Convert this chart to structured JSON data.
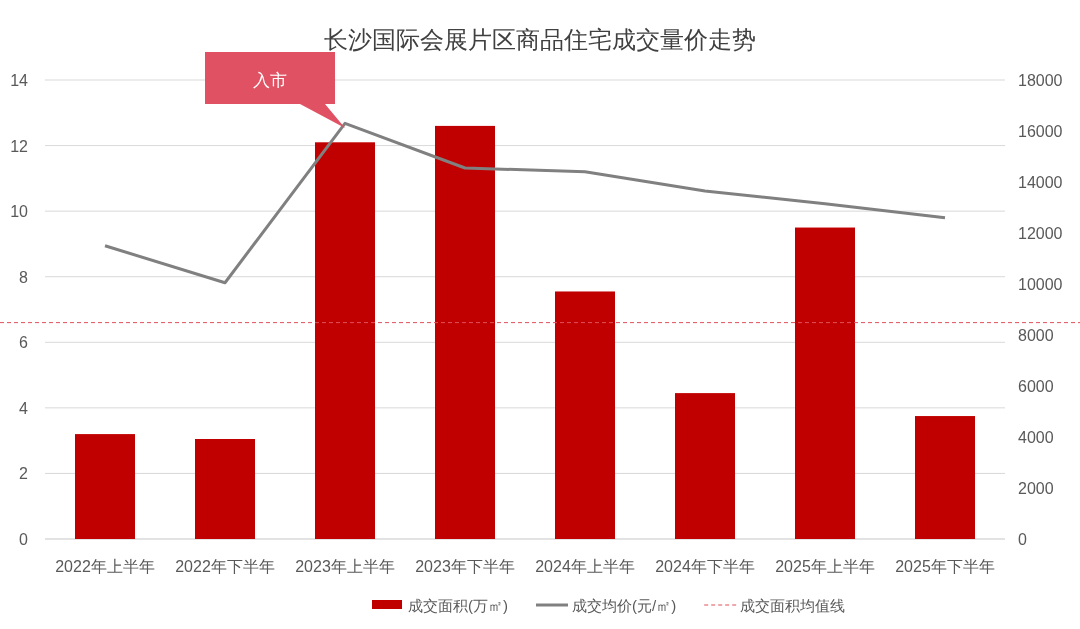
{
  "chart_data": {
    "type": "bar",
    "title": "长沙国际会展片区商品住宅成交量价走势",
    "categories": [
      "2022年上半年",
      "2022年下半年",
      "2023年上半年",
      "2023年下半年",
      "2024年上半年",
      "2024年下半年",
      "2025年上半年",
      "2025年下半年"
    ],
    "series": [
      {
        "name": "成交面积(万㎡)",
        "color": "#c00000",
        "values": [
          3.2,
          3.05,
          12.1,
          12.6,
          7.55,
          4.45,
          9.5,
          3.75
        ]
      },
      {
        "name": "成交均价(元/㎡)",
        "type": "line",
        "axis": "y2",
        "color": "#808080",
        "values": [
          11500,
          10050,
          16300,
          14550,
          14400,
          13650,
          13150,
          12600
        ]
      }
    ],
    "ylim": [
      0,
      14
    ],
    "yticks": [
      0,
      2,
      4,
      6,
      8,
      10,
      12,
      14
    ],
    "y2lim": [
      0,
      18000
    ],
    "y2ticks": [
      0,
      2000,
      4000,
      6000,
      8000,
      10000,
      12000,
      14000,
      16000,
      18000
    ],
    "ref_lines": [
      {
        "axis": "y",
        "value": 6.6,
        "label": "成交面积均值线",
        "color": "#e0505a",
        "line_style": "dashed"
      }
    ],
    "annotations": [
      "入市"
    ],
    "grid": "y",
    "legend": "bottom"
  }
}
